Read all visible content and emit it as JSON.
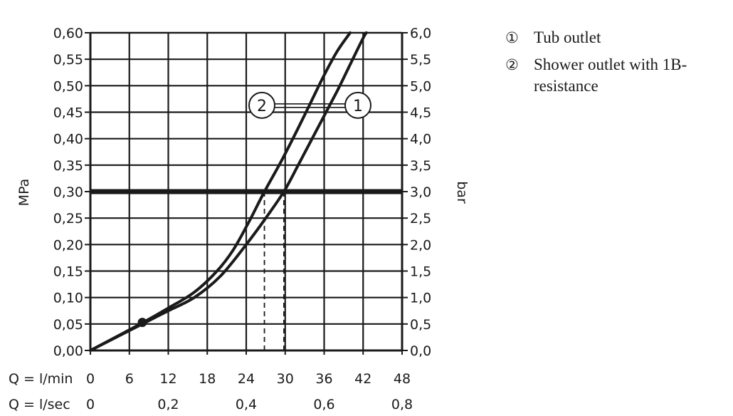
{
  "chart_data": {
    "type": "line",
    "xlabel": "",
    "ylabel_left": "MPa",
    "ylabel_right": "bar",
    "x_unit_primary": "Q = l/min",
    "x_unit_secondary": "Q = l/sec",
    "xlim": [
      0,
      48
    ],
    "ylim": [
      0,
      0.6
    ],
    "x_ticks": [
      "0",
      "6",
      "12",
      "18",
      "24",
      "30",
      "36",
      "42",
      "48"
    ],
    "x_secondary_ticks": [
      {
        "value": 0,
        "label": "0"
      },
      {
        "value": 12,
        "label": "0,2"
      },
      {
        "value": 24,
        "label": "0,4"
      },
      {
        "value": 36,
        "label": "0,6"
      },
      {
        "value": 48,
        "label": "0,8"
      }
    ],
    "y_ticks_left": [
      "0,00",
      "0,05",
      "0,10",
      "0,15",
      "0,20",
      "0,25",
      "0,30",
      "0,35",
      "0,40",
      "0,45",
      "0,50",
      "0,55",
      "0,60"
    ],
    "y_ticks_right": [
      "0,0",
      "0,5",
      "1,0",
      "1,5",
      "2,0",
      "2,5",
      "3,0",
      "3,5",
      "4,0",
      "4,5",
      "5,0",
      "5,5",
      "6,0"
    ],
    "grid": true,
    "reference_line": {
      "y": 0.3
    },
    "drop_lines_x": [
      26.8,
      29.8
    ],
    "highlight_point": {
      "x": 8,
      "y": 0.053
    },
    "series": [
      {
        "name": "1",
        "x": [
          0,
          8,
          12,
          16,
          20,
          24,
          27,
          29.8,
          32,
          35,
          38,
          40,
          42,
          42.5
        ],
        "y": [
          0,
          0.05,
          0.075,
          0.1,
          0.14,
          0.2,
          0.25,
          0.3,
          0.35,
          0.42,
          0.49,
          0.54,
          0.59,
          0.6
        ]
      },
      {
        "name": "2",
        "x": [
          0,
          8,
          12,
          16,
          19.5,
          22,
          24.5,
          26.8,
          29.5,
          32,
          34,
          36,
          38,
          40
        ],
        "y": [
          0,
          0.052,
          0.08,
          0.11,
          0.15,
          0.19,
          0.245,
          0.3,
          0.36,
          0.42,
          0.47,
          0.52,
          0.565,
          0.6
        ]
      }
    ],
    "curve_labels": [
      "2",
      "1"
    ]
  },
  "legend": {
    "items": [
      {
        "num": "①",
        "text": "Tub outlet"
      },
      {
        "num": "②",
        "text": "Shower outlet with 1B-resistance"
      }
    ]
  }
}
